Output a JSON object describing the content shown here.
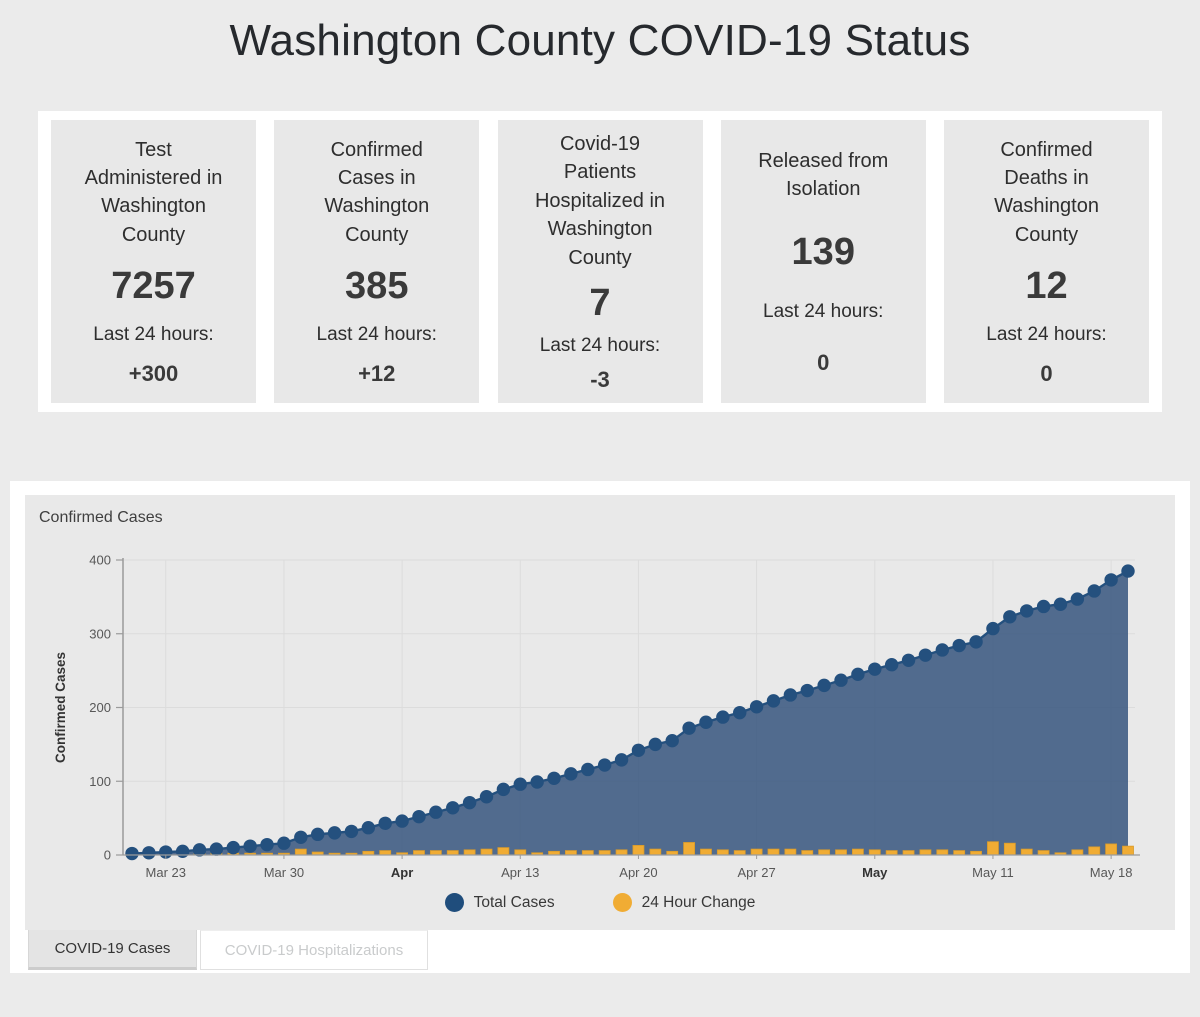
{
  "page": {
    "title": "Washington County COVID-19 Status"
  },
  "colors": {
    "page_bg": "#ebebeb",
    "panel_bg": "#ffffff",
    "card_bg": "#e8e8e8",
    "accent_navy": "#1f4d7c",
    "accent_orange": "#f0ac34",
    "bar_border": "#d99b2b",
    "line": "#24507e",
    "area_fill": "rgba(47,79,122,0.82)",
    "grid": "#dcdcdc",
    "axis": "#9b9b9b",
    "tick_text": "#575757"
  },
  "stat_cards": [
    {
      "label": "Test Administered in Washington County",
      "value": "7257",
      "period_label": "Last 24 hours:",
      "change": "+300"
    },
    {
      "label": "Confirmed Cases in Washington County",
      "value": "385",
      "period_label": "Last 24 hours:",
      "change": "+12"
    },
    {
      "label": "Covid-19 Patients Hospitalized in Washington County",
      "value": "7",
      "period_label": "Last 24 hours:",
      "change": "-3"
    },
    {
      "label": "Released from Isolation",
      "value": "139",
      "period_label": "Last 24 hours:",
      "change": "0"
    },
    {
      "label": "Confirmed Deaths in Washington County",
      "value": "12",
      "period_label": "Last 24 hours:",
      "change": "0"
    }
  ],
  "chart_panel": {
    "title": "Confirmed Cases"
  },
  "chart_data": {
    "type": "area",
    "title": "Confirmed Cases",
    "xlabel": "",
    "ylabel": "Confirmed Cases",
    "ylim": [
      0,
      400
    ],
    "yticks": [
      0,
      100,
      200,
      300,
      400
    ],
    "grid": true,
    "legend_position": "bottom",
    "x": [
      "Mar 21",
      "Mar 22",
      "Mar 23",
      "Mar 24",
      "Mar 25",
      "Mar 26",
      "Mar 27",
      "Mar 28",
      "Mar 29",
      "Mar 30",
      "Mar 31",
      "Apr 1",
      "Apr 2",
      "Apr 3",
      "Apr 4",
      "Apr 5",
      "Apr 6",
      "Apr 7",
      "Apr 8",
      "Apr 9",
      "Apr 10",
      "Apr 11",
      "Apr 12",
      "Apr 13",
      "Apr 14",
      "Apr 15",
      "Apr 16",
      "Apr 17",
      "Apr 18",
      "Apr 19",
      "Apr 20",
      "Apr 21",
      "Apr 22",
      "Apr 23",
      "Apr 24",
      "Apr 25",
      "Apr 26",
      "Apr 27",
      "Apr 28",
      "Apr 29",
      "Apr 30",
      "May 1",
      "May 2",
      "May 3",
      "May 4",
      "May 5",
      "May 6",
      "May 7",
      "May 8",
      "May 9",
      "May 10",
      "May 11",
      "May 12",
      "May 13",
      "May 14",
      "May 15",
      "May 16",
      "May 17",
      "May 18",
      "May 19"
    ],
    "x_ticks": [
      {
        "index": 2,
        "label": "Mar 23",
        "bold": false
      },
      {
        "index": 9,
        "label": "Mar 30",
        "bold": false
      },
      {
        "index": 16,
        "label": "Apr",
        "bold": true
      },
      {
        "index": 23,
        "label": "Apr 13",
        "bold": false
      },
      {
        "index": 30,
        "label": "Apr 20",
        "bold": false
      },
      {
        "index": 37,
        "label": "Apr 27",
        "bold": false
      },
      {
        "index": 44,
        "label": "May",
        "bold": true
      },
      {
        "index": 51,
        "label": "May 11",
        "bold": false
      },
      {
        "index": 58,
        "label": "May 18",
        "bold": false
      }
    ],
    "series": [
      {
        "name": "Total Cases",
        "type": "line-area-dots",
        "values": [
          2,
          3,
          4,
          5,
          7,
          8,
          10,
          12,
          14,
          16,
          24,
          28,
          30,
          32,
          37,
          43,
          46,
          52,
          58,
          64,
          71,
          79,
          89,
          96,
          99,
          104,
          110,
          116,
          122,
          129,
          142,
          150,
          155,
          172,
          180,
          187,
          193,
          201,
          209,
          217,
          223,
          230,
          237,
          245,
          252,
          258,
          264,
          271,
          278,
          284,
          289,
          307,
          323,
          331,
          337,
          340,
          347,
          358,
          373,
          385
        ]
      },
      {
        "name": "24 Hour Change",
        "type": "bar",
        "values": [
          2,
          1,
          1,
          1,
          2,
          1,
          2,
          2,
          2,
          2,
          8,
          4,
          2,
          2,
          5,
          6,
          3,
          6,
          6,
          6,
          7,
          8,
          10,
          7,
          3,
          5,
          6,
          6,
          6,
          7,
          13,
          8,
          5,
          17,
          8,
          7,
          6,
          8,
          8,
          8,
          6,
          7,
          7,
          8,
          7,
          6,
          6,
          7,
          7,
          6,
          5,
          18,
          16,
          8,
          6,
          3,
          7,
          11,
          15,
          12
        ]
      }
    ],
    "legend": [
      {
        "label": "Total Cases",
        "color": "#1f4d7c"
      },
      {
        "label": "24 Hour Change",
        "color": "#f0ac34"
      }
    ]
  },
  "tabs": [
    {
      "label": "COVID-19 Cases",
      "active": true
    },
    {
      "label": "COVID-19 Hospitalizations",
      "active": false
    }
  ]
}
